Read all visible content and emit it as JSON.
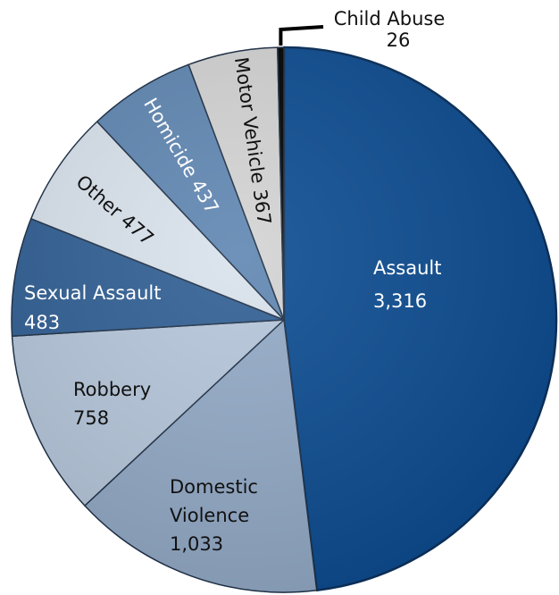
{
  "chart_data": {
    "type": "pie",
    "title": "",
    "slices": [
      {
        "label": "Assault",
        "value_label": "3,316",
        "value": 3316,
        "color": "#0b4b90",
        "text_color": "#ffffff"
      },
      {
        "label": "Domestic Violence",
        "value_label": "1,033",
        "value": 1033,
        "color": "#92a9c6",
        "text_color": "#111111"
      },
      {
        "label": "Robbery",
        "value_label": "758",
        "value": 758,
        "color": "#b5c6da",
        "text_color": "#111111"
      },
      {
        "label": "Sexual Assault",
        "value_label": "483",
        "value": 483,
        "color": "#2f5e93",
        "text_color": "#ffffff"
      },
      {
        "label": "Other",
        "value_label": "477",
        "value": 477,
        "color": "#d9e2ec",
        "text_color": "#111111"
      },
      {
        "label": "Homicide",
        "value_label": "437",
        "value": 437,
        "color": "#5f86b2",
        "text_color": "#ffffff"
      },
      {
        "label": "Motor Vehicle",
        "value_label": "367",
        "value": 367,
        "color": "#d3d3d3",
        "text_color": "#111111"
      },
      {
        "label": "Child Abuse",
        "value_label": "26",
        "value": 26,
        "color": "#000000",
        "text_color": "#111111"
      }
    ]
  }
}
